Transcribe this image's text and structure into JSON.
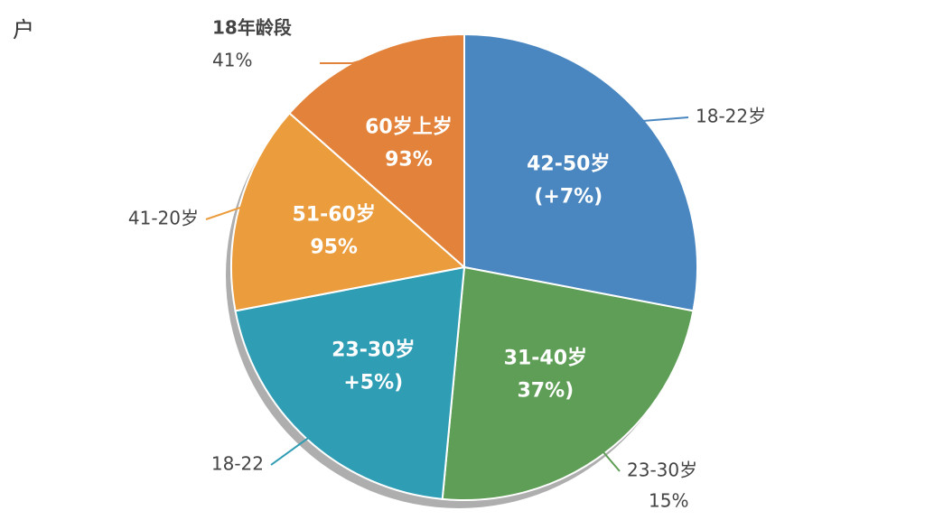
{
  "chart_data": {
    "type": "pie",
    "corner_text": "户",
    "categories": [
      "42-50岁",
      "31-40岁",
      "23-30岁",
      "51-60岁",
      "60岁上岁"
    ],
    "values": [
      28,
      23.5,
      20.5,
      14.5,
      13.5
    ],
    "colors": [
      "#4a87c1",
      "#5f9e56",
      "#2f9db4",
      "#eb9c3c",
      "#e3823a"
    ],
    "details": [
      "(+7%)",
      "37%)",
      "+5%)",
      "95%",
      "93%"
    ],
    "callouts": [
      {
        "text": "18-22岁"
      },
      {
        "text": "23-30岁",
        "detail": "15%"
      },
      {
        "text": "18-22"
      },
      {
        "text": "41-20岁"
      },
      {
        "text": "18年龄段",
        "detail": "41%"
      }
    ]
  }
}
